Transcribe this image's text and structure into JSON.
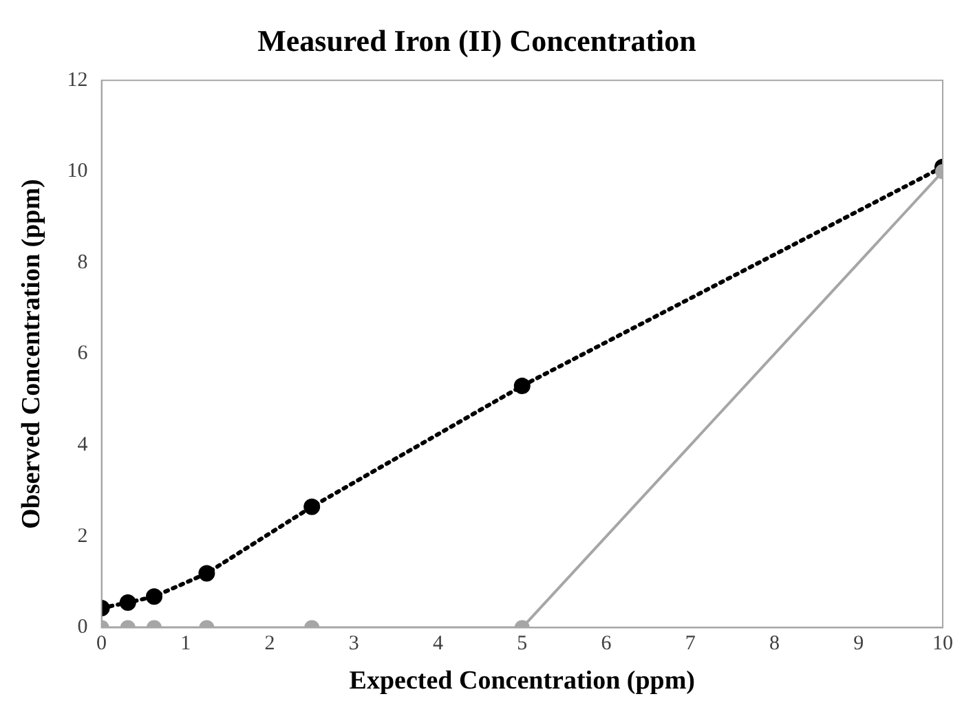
{
  "chart_data": {
    "type": "line",
    "title": "Measured Iron (II) Concentration",
    "xlabel": "Expected Concentration (ppm)",
    "ylabel": "Observed Concentration (ppm)",
    "x": [
      0,
      0.3125,
      0.625,
      1.25,
      2.5,
      5,
      10
    ],
    "series": [
      {
        "color": "#000000",
        "values": [
          0.43,
          0.55,
          0.68,
          1.19,
          2.65,
          5.3,
          10.1
        ],
        "line_style": "dotted"
      },
      {
        "color": "#a6a6a6",
        "values": [
          0,
          0,
          0,
          0,
          0,
          0,
          10
        ],
        "line_style": "solid"
      }
    ],
    "xlim": [
      0,
      10
    ],
    "xticks": [
      0,
      1,
      2,
      3,
      4,
      5,
      6,
      7,
      8,
      9,
      10
    ],
    "ylim": [
      0,
      12
    ],
    "yticks": [
      0,
      2,
      4,
      6,
      8,
      10,
      12
    ],
    "grid": false,
    "legend": false,
    "marker": "circle"
  }
}
